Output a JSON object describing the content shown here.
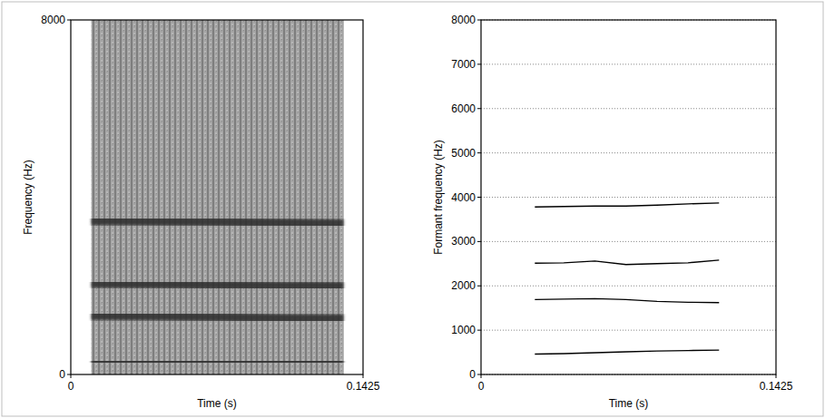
{
  "chart_data": [
    {
      "type": "spectrogram",
      "xlabel": "Time (s)",
      "ylabel": "Frequency (Hz)",
      "x": [
        0.01,
        0.04,
        0.07,
        0.1,
        0.133
      ],
      "series": [
        {
          "values": [
            280,
            280,
            290,
            280,
            280
          ]
        },
        {
          "values": [
            1330,
            1320,
            1300,
            1270,
            1260
          ]
        },
        {
          "values": [
            2050,
            2040,
            2020,
            2000,
            1990
          ]
        },
        {
          "values": [
            3470,
            3460,
            3450,
            3420,
            3400
          ]
        }
      ],
      "color": "#2e2e2e",
      "xlim": [
        0,
        0.1425
      ],
      "xticks": [
        0,
        0.1425
      ],
      "ylim": [
        0,
        8000
      ],
      "yticks": [
        0,
        8000
      ],
      "grid": false
    },
    {
      "type": "line",
      "xlabel": "Time (s)",
      "ylabel": "Formant frequency (Hz)",
      "x": [
        0.026,
        0.04,
        0.055,
        0.07,
        0.085,
        0.1,
        0.115
      ],
      "series": [
        {
          "values": [
            460,
            470,
            490,
            510,
            530,
            540,
            550
          ]
        },
        {
          "values": [
            1690,
            1700,
            1710,
            1690,
            1650,
            1630,
            1620
          ]
        },
        {
          "values": [
            2510,
            2520,
            2560,
            2480,
            2500,
            2520,
            2580
          ]
        },
        {
          "values": [
            3780,
            3790,
            3800,
            3800,
            3820,
            3850,
            3870
          ]
        }
      ],
      "color": "#000000",
      "xlim": [
        0,
        0.1425
      ],
      "xticks": [
        0,
        0.1425
      ],
      "ylim": [
        0,
        8000
      ],
      "yticks": [
        0,
        1000,
        2000,
        3000,
        4000,
        5000,
        6000,
        7000,
        8000
      ],
      "grid": true
    }
  ]
}
